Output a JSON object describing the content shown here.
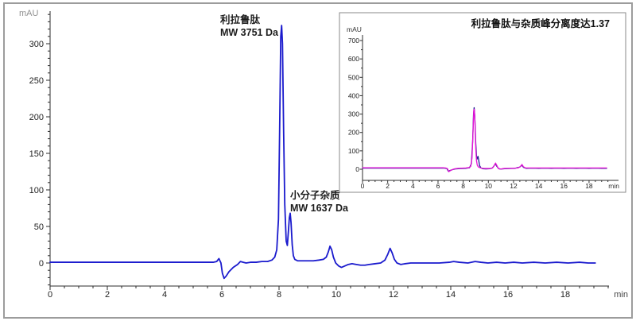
{
  "window": {
    "background": "#ffffff",
    "frame_border_color": "#9c9c9c",
    "axis_color": "#2e2e2e",
    "tick_label_color": "#222222"
  },
  "chart_data": [
    {
      "id": "main",
      "type": "line",
      "title": "",
      "xlabel": "min",
      "ylabel": "mAU",
      "xlim": [
        0,
        19.5
      ],
      "ylim": [
        -30,
        340
      ],
      "grid": false,
      "legend": "none",
      "x_ticks": [
        0,
        2,
        4,
        6,
        8,
        10,
        12,
        14,
        16,
        18
      ],
      "y_ticks": [
        0,
        50,
        100,
        150,
        200,
        250,
        300
      ],
      "annotations": [
        {
          "name": "liraglutide-peak",
          "line1": "利拉鲁肽",
          "line2": "MW 3751 Da",
          "peak_time_min": 8.1,
          "peak_mau": 325
        },
        {
          "name": "impurity-peak",
          "line1": "小分子杂质",
          "line2": "MW 1637 Da",
          "peak_time_min": 8.4,
          "peak_mau": 68
        }
      ],
      "series": [
        {
          "name": "liraglutide-sample",
          "color": "#1a1acd",
          "points": [
            [
              0,
              1
            ],
            [
              0.5,
              1
            ],
            [
              1,
              1
            ],
            [
              1.5,
              1
            ],
            [
              2,
              1
            ],
            [
              2.5,
              1
            ],
            [
              3,
              1
            ],
            [
              3.5,
              1
            ],
            [
              4,
              1
            ],
            [
              4.5,
              1
            ],
            [
              5,
              1
            ],
            [
              5.4,
              1
            ],
            [
              5.7,
              1
            ],
            [
              5.82,
              2
            ],
            [
              5.9,
              6
            ],
            [
              5.97,
              0
            ],
            [
              6.02,
              -14
            ],
            [
              6.08,
              -21
            ],
            [
              6.15,
              -18
            ],
            [
              6.25,
              -12
            ],
            [
              6.4,
              -6
            ],
            [
              6.55,
              -2
            ],
            [
              6.65,
              2
            ],
            [
              6.75,
              1
            ],
            [
              6.85,
              0
            ],
            [
              7,
              1
            ],
            [
              7.2,
              1
            ],
            [
              7.4,
              2
            ],
            [
              7.6,
              2
            ],
            [
              7.75,
              4
            ],
            [
              7.85,
              8
            ],
            [
              7.92,
              18
            ],
            [
              7.98,
              60
            ],
            [
              8.02,
              180
            ],
            [
              8.06,
              310
            ],
            [
              8.09,
              325
            ],
            [
              8.12,
              300
            ],
            [
              8.16,
              180
            ],
            [
              8.2,
              80
            ],
            [
              8.25,
              30
            ],
            [
              8.29,
              24
            ],
            [
              8.33,
              45
            ],
            [
              8.36,
              62
            ],
            [
              8.39,
              68
            ],
            [
              8.42,
              55
            ],
            [
              8.46,
              25
            ],
            [
              8.5,
              10
            ],
            [
              8.55,
              5
            ],
            [
              8.65,
              3
            ],
            [
              8.8,
              3
            ],
            [
              9,
              3
            ],
            [
              9.2,
              3
            ],
            [
              9.4,
              4
            ],
            [
              9.55,
              5
            ],
            [
              9.65,
              8
            ],
            [
              9.72,
              15
            ],
            [
              9.78,
              23
            ],
            [
              9.84,
              18
            ],
            [
              9.9,
              8
            ],
            [
              9.98,
              0
            ],
            [
              10.08,
              -4
            ],
            [
              10.18,
              -6
            ],
            [
              10.3,
              -4
            ],
            [
              10.42,
              -2
            ],
            [
              10.55,
              -1
            ],
            [
              10.7,
              -2
            ],
            [
              10.85,
              -3
            ],
            [
              11,
              -3
            ],
            [
              11.15,
              -2
            ],
            [
              11.35,
              -1
            ],
            [
              11.55,
              0
            ],
            [
              11.7,
              4
            ],
            [
              11.8,
              12
            ],
            [
              11.88,
              20
            ],
            [
              11.95,
              14
            ],
            [
              12.03,
              5
            ],
            [
              12.12,
              0
            ],
            [
              12.25,
              -2
            ],
            [
              12.4,
              -1
            ],
            [
              12.6,
              0
            ],
            [
              12.9,
              0
            ],
            [
              13.2,
              0
            ],
            [
              13.6,
              0
            ],
            [
              13.95,
              1
            ],
            [
              14.1,
              2
            ],
            [
              14.3,
              1
            ],
            [
              14.6,
              0
            ],
            [
              14.85,
              2
            ],
            [
              15.05,
              1
            ],
            [
              15.3,
              0
            ],
            [
              15.6,
              1
            ],
            [
              15.9,
              0
            ],
            [
              16.2,
              1
            ],
            [
              16.5,
              0
            ],
            [
              16.9,
              1
            ],
            [
              17.3,
              0
            ],
            [
              17.7,
              1
            ],
            [
              18.1,
              0
            ],
            [
              18.5,
              1
            ],
            [
              18.8,
              0
            ],
            [
              19.05,
              0
            ]
          ]
        }
      ]
    },
    {
      "id": "inset",
      "type": "line",
      "title": "利拉鲁肽与杂质峰分离度达1.37",
      "resolution": "1.37",
      "xlabel": "min",
      "ylabel": "mAU",
      "xlim": [
        0,
        19.5
      ],
      "ylim": [
        -20,
        750
      ],
      "grid": false,
      "legend": "none",
      "x_ticks": [
        0,
        2,
        4,
        6,
        8,
        10,
        12,
        14,
        16,
        18
      ],
      "y_ticks": [
        0,
        100,
        200,
        300,
        400,
        500,
        600,
        700
      ],
      "series": [
        {
          "name": "overlay-navy",
          "color": "#1b1b8f",
          "points": [
            [
              0,
              6
            ],
            [
              1,
              6
            ],
            [
              2,
              6
            ],
            [
              3,
              6
            ],
            [
              4,
              6
            ],
            [
              5,
              6
            ],
            [
              6,
              6
            ],
            [
              6.5,
              6
            ],
            [
              6.7,
              4
            ],
            [
              6.82,
              -11
            ],
            [
              6.95,
              -7
            ],
            [
              7.15,
              -2
            ],
            [
              7.4,
              2
            ],
            [
              7.8,
              4
            ],
            [
              8.2,
              5
            ],
            [
              8.5,
              8
            ],
            [
              8.65,
              30
            ],
            [
              8.75,
              150
            ],
            [
              8.82,
              300
            ],
            [
              8.87,
              335
            ],
            [
              8.92,
              290
            ],
            [
              9,
              140
            ],
            [
              9.06,
              70
            ],
            [
              9.1,
              55
            ],
            [
              9.14,
              65
            ],
            [
              9.18,
              70
            ],
            [
              9.23,
              50
            ],
            [
              9.3,
              20
            ],
            [
              9.4,
              8
            ],
            [
              9.55,
              3
            ],
            [
              9.8,
              2
            ],
            [
              10.1,
              3
            ],
            [
              10.3,
              6
            ],
            [
              10.45,
              18
            ],
            [
              10.55,
              30
            ],
            [
              10.68,
              15
            ],
            [
              10.82,
              3
            ],
            [
              11,
              1
            ],
            [
              11.3,
              3
            ],
            [
              11.7,
              4
            ],
            [
              12.1,
              5
            ],
            [
              12.5,
              12
            ],
            [
              12.65,
              22
            ],
            [
              12.8,
              10
            ],
            [
              13,
              5
            ],
            [
              13.5,
              6
            ],
            [
              14,
              5
            ],
            [
              14.5,
              6
            ],
            [
              15,
              5
            ],
            [
              15.5,
              6
            ],
            [
              16,
              5
            ],
            [
              16.5,
              6
            ],
            [
              17,
              5
            ],
            [
              17.5,
              6
            ],
            [
              18,
              5
            ],
            [
              18.5,
              6
            ],
            [
              19,
              5
            ],
            [
              19.4,
              5
            ]
          ]
        },
        {
          "name": "overlay-magenta",
          "color": "#e812d8",
          "points": [
            [
              0,
              8
            ],
            [
              0.5,
              8
            ],
            [
              1,
              8
            ],
            [
              1.5,
              8
            ],
            [
              2,
              8
            ],
            [
              2.5,
              8
            ],
            [
              3,
              8
            ],
            [
              3.5,
              8
            ],
            [
              4,
              8
            ],
            [
              4.5,
              8
            ],
            [
              5,
              8
            ],
            [
              5.5,
              8
            ],
            [
              6,
              8
            ],
            [
              6.4,
              8
            ],
            [
              6.6,
              7
            ],
            [
              6.75,
              3
            ],
            [
              6.85,
              -13
            ],
            [
              6.95,
              -9
            ],
            [
              7.1,
              -3
            ],
            [
              7.3,
              2
            ],
            [
              7.6,
              5
            ],
            [
              7.9,
              6
            ],
            [
              8.2,
              7
            ],
            [
              8.45,
              9
            ],
            [
              8.6,
              16
            ],
            [
              8.7,
              60
            ],
            [
              8.78,
              200
            ],
            [
              8.84,
              320
            ],
            [
              8.88,
              326
            ],
            [
              8.93,
              270
            ],
            [
              9,
              110
            ],
            [
              9.06,
              45
            ],
            [
              9.12,
              22
            ],
            [
              9.2,
              13
            ],
            [
              9.3,
              9
            ],
            [
              9.45,
              6
            ],
            [
              9.6,
              5
            ],
            [
              9.8,
              4
            ],
            [
              10,
              4
            ],
            [
              10.2,
              5
            ],
            [
              10.35,
              8
            ],
            [
              10.48,
              22
            ],
            [
              10.57,
              34
            ],
            [
              10.66,
              22
            ],
            [
              10.78,
              6
            ],
            [
              10.9,
              1
            ],
            [
              11.05,
              2
            ],
            [
              11.25,
              4
            ],
            [
              11.5,
              5
            ],
            [
              11.8,
              5
            ],
            [
              12.1,
              6
            ],
            [
              12.35,
              7
            ],
            [
              12.55,
              15
            ],
            [
              12.67,
              26
            ],
            [
              12.78,
              14
            ],
            [
              12.95,
              7
            ],
            [
              13.2,
              7
            ],
            [
              13.6,
              7
            ],
            [
              14,
              7
            ],
            [
              14.5,
              7
            ],
            [
              15,
              7
            ],
            [
              15.5,
              7
            ],
            [
              16,
              7
            ],
            [
              16.5,
              7
            ],
            [
              17,
              7
            ],
            [
              17.5,
              7
            ],
            [
              18,
              7
            ],
            [
              18.5,
              7
            ],
            [
              19,
              7
            ],
            [
              19.4,
              7
            ]
          ]
        }
      ]
    }
  ]
}
